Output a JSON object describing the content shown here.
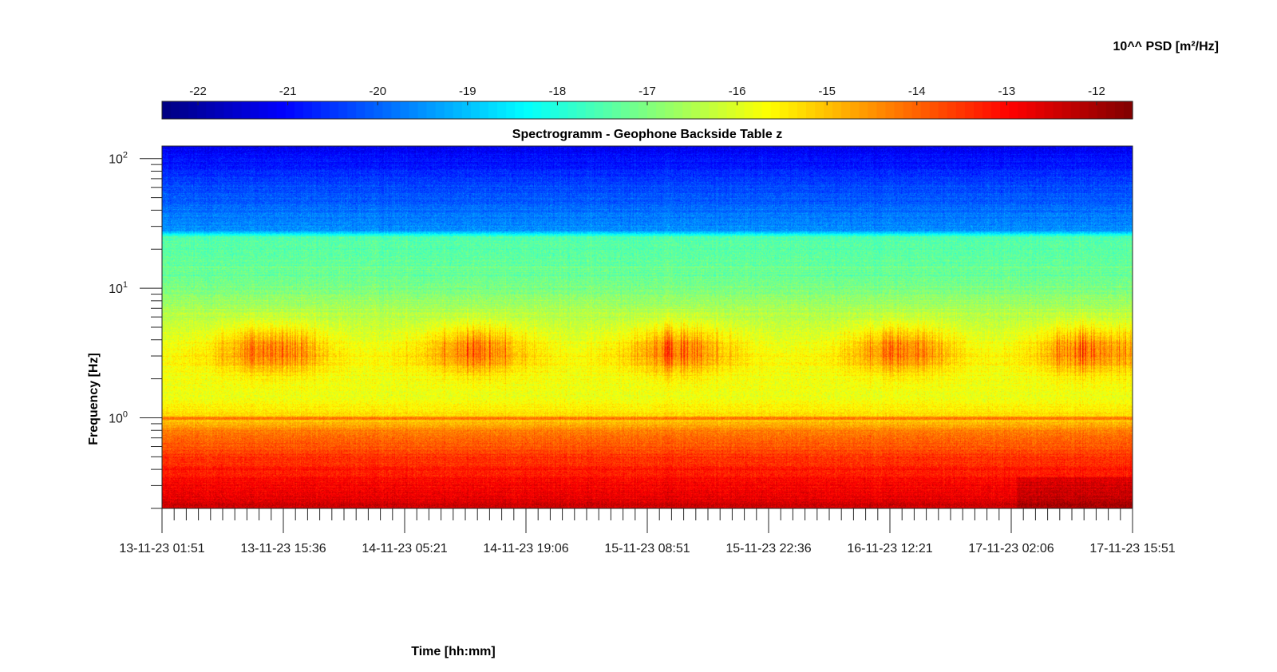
{
  "chart_data": {
    "type": "heatmap",
    "title": "Spectrogramm - Geophone Backside Table z",
    "xlabel": "Time [hh:mm]",
    "ylabel": "Frequency [Hz]",
    "colorbar": {
      "label": "10^^ PSD [m²/Hz]",
      "ticks": [
        "-22",
        "-21",
        "-20",
        "-19",
        "-18",
        "-17",
        "-16",
        "-15",
        "-14",
        "-13",
        "-12"
      ],
      "range": [
        -22.4,
        -11.6
      ],
      "colormap": "jet"
    },
    "x_tick_labels": [
      "13-11-23 01:51",
      "13-11-23 15:36",
      "14-11-23 05:21",
      "14-11-23 19:06",
      "15-11-23 08:51",
      "15-11-23 22:36",
      "16-11-23 12:21",
      "17-11-23 02:06",
      "17-11-23 15:51"
    ],
    "x_range": [
      "13-11-23 01:51",
      "17-11-23 15:51"
    ],
    "y_scale": "log",
    "y_range": [
      0.2,
      125
    ],
    "y_tick_labels": [
      {
        "base": "10",
        "exp": "0",
        "value": 1
      },
      {
        "base": "10",
        "exp": "1",
        "value": 10
      },
      {
        "base": "10",
        "exp": "2",
        "value": 100
      }
    ],
    "psd_profile_by_frequency_hz": [
      {
        "f": 0.2,
        "psd": -12.4
      },
      {
        "f": 0.3,
        "psd": -12.9
      },
      {
        "f": 0.5,
        "psd": -13.5
      },
      {
        "f": 0.8,
        "psd": -14.3
      },
      {
        "f": 1.0,
        "psd": -15.2
      },
      {
        "f": 1.5,
        "psd": -15.9
      },
      {
        "f": 3.0,
        "psd": -15.7
      },
      {
        "f": 6.0,
        "psd": -16.4
      },
      {
        "f": 12.0,
        "psd": -17.2
      },
      {
        "f": 25.0,
        "psd": -17.5
      },
      {
        "f": 28.0,
        "psd": -19.5
      },
      {
        "f": 60.0,
        "psd": -20.3
      },
      {
        "f": 125.0,
        "psd": -21.2
      }
    ],
    "grid": false
  }
}
